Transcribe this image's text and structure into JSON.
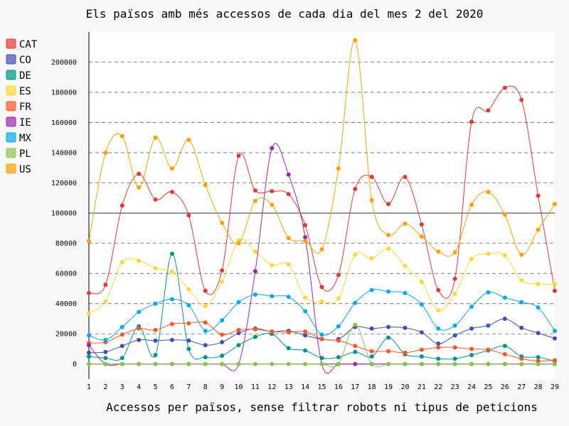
{
  "chart_data": {
    "type": "line",
    "title": "Els països amb més accessos de cada dia del mes 2 del 2020",
    "xlabel": "Accessos per països, sense filtrar robots ni tipus de peticions",
    "ylabel": "",
    "x": [
      1,
      2,
      3,
      4,
      5,
      6,
      7,
      8,
      9,
      10,
      11,
      12,
      13,
      14,
      15,
      16,
      17,
      18,
      19,
      20,
      21,
      22,
      23,
      24,
      25,
      26,
      27,
      28,
      29
    ],
    "ylim": [
      -10000,
      220000
    ],
    "yticks": [
      0,
      20000,
      40000,
      60000,
      80000,
      100000,
      120000,
      140000,
      160000,
      180000,
      200000
    ],
    "grid": "horizontal dashed",
    "legend_position": "left",
    "series": [
      {
        "name": "CAT",
        "color": "#e53935",
        "values": [
          47000,
          52500,
          105000,
          126000,
          109000,
          114000,
          98500,
          48500,
          62000,
          138000,
          115000,
          114500,
          112500,
          92000,
          51000,
          59000,
          116000,
          124000,
          106000,
          124000,
          92500,
          49000,
          56500,
          160500,
          168000,
          183000,
          175000,
          111500,
          48500
        ]
      },
      {
        "name": "CO",
        "color": "#3f51b5",
        "values": [
          7500,
          8000,
          12000,
          16000,
          15500,
          16000,
          15500,
          12500,
          14500,
          20500,
          23500,
          21500,
          22000,
          19000,
          16500,
          16500,
          24500,
          23500,
          24500,
          24000,
          21000,
          13500,
          19000,
          23500,
          25500,
          30000,
          24000,
          20500,
          17000
        ]
      },
      {
        "name": "DE",
        "color": "#009688",
        "values": [
          5000,
          4000,
          4000,
          25000,
          6000,
          73000,
          10000,
          4500,
          5500,
          12500,
          18000,
          20000,
          10500,
          9000,
          4000,
          4500,
          8000,
          5000,
          17500,
          6500,
          5000,
          3500,
          3500,
          6000,
          9000,
          12000,
          5000,
          4500,
          2000
        ]
      },
      {
        "name": "ES",
        "color": "#fdd835",
        "values": [
          33500,
          41500,
          67500,
          68500,
          63500,
          61000,
          49500,
          38500,
          54500,
          82000,
          74500,
          65500,
          66000,
          44000,
          41500,
          43500,
          72500,
          70000,
          76500,
          65000,
          54500,
          35500,
          46500,
          69500,
          73000,
          72000,
          55500,
          53000,
          53000
        ]
      },
      {
        "name": "FR",
        "color": "#ff5722",
        "values": [
          14000,
          14500,
          19500,
          23500,
          22500,
          26500,
          27000,
          27500,
          19500,
          22500,
          23000,
          21500,
          21000,
          21500,
          16500,
          15500,
          12000,
          8500,
          8500,
          7500,
          9500,
          11000,
          11000,
          10000,
          9500,
          6500,
          3500,
          2000,
          2500
        ]
      },
      {
        "name": "IE",
        "color": "#9c27b0",
        "values": [
          12500,
          0,
          0,
          0,
          0,
          0,
          0,
          0,
          0,
          0,
          61500,
          143000,
          125500,
          84000,
          0,
          0,
          0,
          0,
          0,
          0,
          0,
          0,
          0,
          0,
          0,
          0,
          0,
          0,
          0
        ]
      },
      {
        "name": "MX",
        "color": "#03a9f4",
        "values": [
          19000,
          16000,
          24500,
          34500,
          40000,
          43000,
          39000,
          22000,
          29000,
          41000,
          46000,
          45000,
          44500,
          35000,
          19500,
          25000,
          40500,
          49000,
          48000,
          47000,
          39500,
          23500,
          25500,
          38000,
          47500,
          44000,
          41000,
          37500,
          22000
        ]
      },
      {
        "name": "PL",
        "color": "#8bc34a",
        "values": [
          0,
          0,
          0,
          0,
          0,
          0,
          0,
          0,
          0,
          0,
          0,
          0,
          0,
          0,
          0,
          0,
          26000,
          0,
          0,
          0,
          0,
          0,
          0,
          0,
          0,
          0,
          0,
          0,
          0
        ]
      },
      {
        "name": "US",
        "color": "#ffa000",
        "values": [
          81500,
          140000,
          151000,
          117000,
          150000,
          129500,
          148500,
          118500,
          93500,
          80000,
          108000,
          105500,
          83500,
          81500,
          76000,
          129500,
          214500,
          108500,
          85500,
          93000,
          84500,
          74500,
          74000,
          105500,
          114000,
          99000,
          72500,
          89000,
          106000
        ]
      }
    ]
  }
}
